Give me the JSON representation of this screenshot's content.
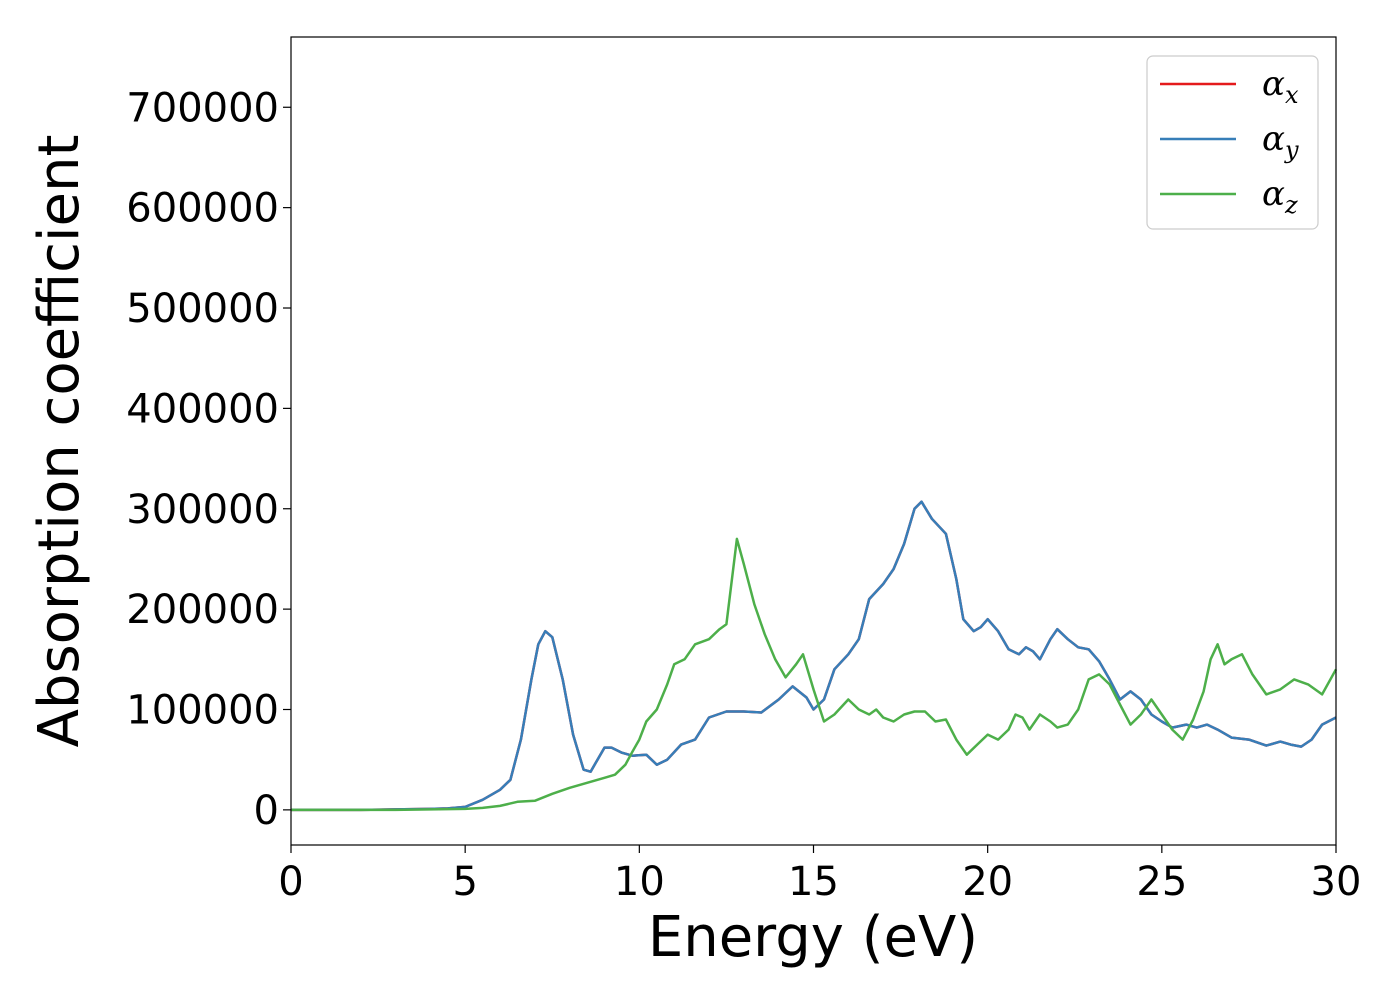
{
  "chart_data": {
    "type": "line",
    "xlabel": "Energy (eV)",
    "ylabel": "Absorption coefficient",
    "xlim": [
      0,
      30
    ],
    "ylim": [
      -35000,
      770000
    ],
    "xticks": [
      "0",
      "5",
      "10",
      "15",
      "20",
      "25",
      "30"
    ],
    "yticks": [
      "0",
      "100000",
      "200000",
      "300000",
      "400000",
      "500000",
      "600000",
      "700000"
    ],
    "grid": false,
    "legend_position": "top-right",
    "series": [
      {
        "name": "α_x",
        "base": "α",
        "sub": "x",
        "color": "#e41a1c",
        "x": [
          0,
          1,
          2,
          3,
          4,
          4.5,
          5,
          5.5,
          6,
          6.3,
          6.6,
          6.9,
          7.1,
          7.3,
          7.5,
          7.8,
          8.1,
          8.4,
          8.6,
          8.8,
          9.0,
          9.2,
          9.5,
          9.8,
          10.2,
          10.5,
          10.8,
          11.2,
          11.6,
          12.0,
          12.5,
          13.0,
          13.5,
          14.0,
          14.4,
          14.8,
          15.0,
          15.3,
          15.6,
          16.0,
          16.3,
          16.6,
          17.0,
          17.3,
          17.6,
          17.9,
          18.1,
          18.4,
          18.8,
          19.1,
          19.3,
          19.6,
          19.8,
          20.0,
          20.3,
          20.6,
          20.9,
          21.1,
          21.3,
          21.5,
          21.8,
          22.0,
          22.3,
          22.6,
          22.9,
          23.2,
          23.5,
          23.8,
          24.1,
          24.4,
          24.7,
          25.0,
          25.3,
          25.7,
          26.0,
          26.3,
          26.6,
          27.0,
          27.5,
          28.0,
          28.4,
          28.7,
          29.0,
          29.3,
          29.6,
          30.0
        ],
        "y": [
          0,
          0,
          0,
          500,
          1000,
          1500,
          3000,
          10000,
          20000,
          30000,
          70000,
          130000,
          165000,
          178000,
          172000,
          130000,
          75000,
          40000,
          38000,
          50000,
          62000,
          62000,
          57000,
          54000,
          55000,
          45000,
          50000,
          65000,
          70000,
          92000,
          98000,
          98000,
          97000,
          110000,
          123000,
          112000,
          100000,
          110000,
          140000,
          155000,
          170000,
          210000,
          225000,
          240000,
          265000,
          300000,
          307000,
          290000,
          275000,
          230000,
          190000,
          178000,
          182000,
          190000,
          178000,
          160000,
          155000,
          162000,
          158000,
          150000,
          170000,
          180000,
          170000,
          162000,
          160000,
          148000,
          130000,
          110000,
          118000,
          110000,
          95000,
          88000,
          82000,
          85000,
          82000,
          85000,
          80000,
          72000,
          70000,
          64000,
          68000,
          65000,
          63000,
          70000,
          85000,
          92000
        ]
      },
      {
        "name": "α_y",
        "base": "α",
        "sub": "y",
        "color": "#377eb8",
        "x": [
          0,
          1,
          2,
          3,
          4,
          4.5,
          5,
          5.5,
          6,
          6.3,
          6.6,
          6.9,
          7.1,
          7.3,
          7.5,
          7.8,
          8.1,
          8.4,
          8.6,
          8.8,
          9.0,
          9.2,
          9.5,
          9.8,
          10.2,
          10.5,
          10.8,
          11.2,
          11.6,
          12.0,
          12.5,
          13.0,
          13.5,
          14.0,
          14.4,
          14.8,
          15.0,
          15.3,
          15.6,
          16.0,
          16.3,
          16.6,
          17.0,
          17.3,
          17.6,
          17.9,
          18.1,
          18.4,
          18.8,
          19.1,
          19.3,
          19.6,
          19.8,
          20.0,
          20.3,
          20.6,
          20.9,
          21.1,
          21.3,
          21.5,
          21.8,
          22.0,
          22.3,
          22.6,
          22.9,
          23.2,
          23.5,
          23.8,
          24.1,
          24.4,
          24.7,
          25.0,
          25.3,
          25.7,
          26.0,
          26.3,
          26.6,
          27.0,
          27.5,
          28.0,
          28.4,
          28.7,
          29.0,
          29.3,
          29.6,
          30.0
        ],
        "y": [
          0,
          0,
          0,
          500,
          1000,
          1500,
          3000,
          10000,
          20000,
          30000,
          70000,
          130000,
          165000,
          178000,
          172000,
          130000,
          75000,
          40000,
          38000,
          50000,
          62000,
          62000,
          57000,
          54000,
          55000,
          45000,
          50000,
          65000,
          70000,
          92000,
          98000,
          98000,
          97000,
          110000,
          123000,
          112000,
          100000,
          110000,
          140000,
          155000,
          170000,
          210000,
          225000,
          240000,
          265000,
          300000,
          307000,
          290000,
          275000,
          230000,
          190000,
          178000,
          182000,
          190000,
          178000,
          160000,
          155000,
          162000,
          158000,
          150000,
          170000,
          180000,
          170000,
          162000,
          160000,
          148000,
          130000,
          110000,
          118000,
          110000,
          95000,
          88000,
          82000,
          85000,
          82000,
          85000,
          80000,
          72000,
          70000,
          64000,
          68000,
          65000,
          63000,
          70000,
          85000,
          92000
        ]
      },
      {
        "name": "α_z",
        "base": "α",
        "sub": "z",
        "color": "#4daf4a",
        "x": [
          0,
          1,
          2,
          3,
          4,
          5,
          5.5,
          6,
          6.5,
          7,
          7.5,
          8,
          8.5,
          9,
          9.3,
          9.6,
          9.8,
          10.0,
          10.2,
          10.5,
          10.8,
          11.0,
          11.3,
          11.6,
          12.0,
          12.3,
          12.5,
          12.8,
          13.0,
          13.3,
          13.6,
          13.9,
          14.2,
          14.5,
          14.7,
          15.0,
          15.3,
          15.6,
          16.0,
          16.3,
          16.6,
          16.8,
          17.0,
          17.3,
          17.6,
          17.9,
          18.2,
          18.5,
          18.8,
          19.1,
          19.4,
          19.7,
          20.0,
          20.3,
          20.6,
          20.8,
          21.0,
          21.2,
          21.5,
          21.8,
          22.0,
          22.3,
          22.6,
          22.9,
          23.2,
          23.5,
          23.8,
          24.1,
          24.4,
          24.7,
          25.0,
          25.3,
          25.6,
          25.9,
          26.2,
          26.4,
          26.6,
          26.8,
          27.0,
          27.3,
          27.6,
          28.0,
          28.4,
          28.8,
          29.2,
          29.6,
          30.0
        ],
        "y": [
          0,
          0,
          0,
          0,
          500,
          1000,
          2000,
          4000,
          8000,
          9000,
          16000,
          22000,
          27000,
          32000,
          35000,
          45000,
          58000,
          70000,
          88000,
          100000,
          125000,
          145000,
          150000,
          165000,
          170000,
          180000,
          185000,
          270000,
          245000,
          205000,
          175000,
          150000,
          132000,
          145000,
          155000,
          120000,
          88000,
          95000,
          110000,
          100000,
          95000,
          100000,
          92000,
          88000,
          95000,
          98000,
          98000,
          88000,
          90000,
          70000,
          55000,
          65000,
          75000,
          70000,
          80000,
          95000,
          92000,
          80000,
          95000,
          88000,
          82000,
          85000,
          100000,
          130000,
          135000,
          125000,
          105000,
          85000,
          95000,
          110000,
          95000,
          80000,
          70000,
          90000,
          118000,
          150000,
          165000,
          145000,
          150000,
          155000,
          135000,
          115000,
          120000,
          130000,
          125000,
          115000,
          140000
        ]
      }
    ]
  }
}
